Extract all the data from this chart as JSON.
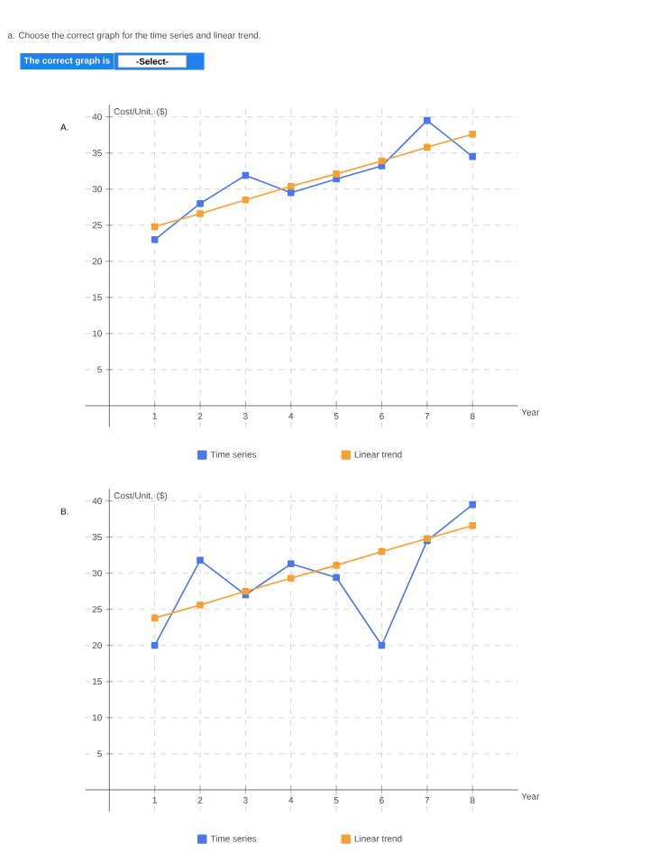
{
  "chart_data": [
    {
      "type": "line",
      "title": "A.",
      "xlabel": "Year",
      "ylabel": "Cost/Unit.  ($)",
      "annotations": [
        "a. Choose the correct graph for the time series and linear trend.",
        "The correct graph is",
        "-Select-"
      ],
      "x": [
        1,
        2,
        3,
        4,
        5,
        6,
        7,
        8
      ],
      "series": [
        {
          "name": "Time  series",
          "color": "#4a77ea",
          "values": [
            23,
            28,
            31.9,
            29.5,
            31.4,
            33.2,
            39.5,
            34.5
          ]
        },
        {
          "name": "Linear  trend",
          "color": "#f7a035",
          "values": [
            24.8,
            26.6,
            28.5,
            30.4,
            32.1,
            33.9,
            35.8,
            37.6
          ]
        }
      ],
      "xlim": [
        -0.53,
        9
      ],
      "ylim": [
        -3,
        41.7
      ],
      "xticks": [
        1,
        2,
        3,
        4,
        5,
        6,
        7,
        8
      ],
      "yticks": [
        5,
        10,
        15,
        20,
        25,
        30,
        35,
        40
      ],
      "grid": true,
      "legend": "bottom",
      "marker": "square",
      "line_style": "solid"
    },
    {
      "type": "line",
      "title": "B.",
      "xlabel": "Year",
      "ylabel": "Cost/Unit.  ($)",
      "x": [
        1,
        2,
        3,
        4,
        5,
        6,
        7,
        8
      ],
      "series": [
        {
          "name": "Time  series",
          "color": "#4a77ea",
          "values": [
            20,
            31.8,
            27,
            31.3,
            29.4,
            20,
            34.5,
            39.5
          ]
        },
        {
          "name": "Linear  trend",
          "color": "#f7a035",
          "values": [
            23.8,
            25.6,
            27.5,
            29.3,
            31.1,
            33,
            34.8,
            36.6
          ]
        }
      ],
      "xlim": [
        -0.53,
        9
      ],
      "ylim": [
        -3,
        41.7
      ],
      "xticks": [
        1,
        2,
        3,
        4,
        5,
        6,
        7,
        8
      ],
      "yticks": [
        5,
        10,
        15,
        20,
        25,
        30,
        35,
        40
      ],
      "grid": true,
      "legend": "bottom",
      "marker": "square",
      "line_style": "solid"
    }
  ]
}
